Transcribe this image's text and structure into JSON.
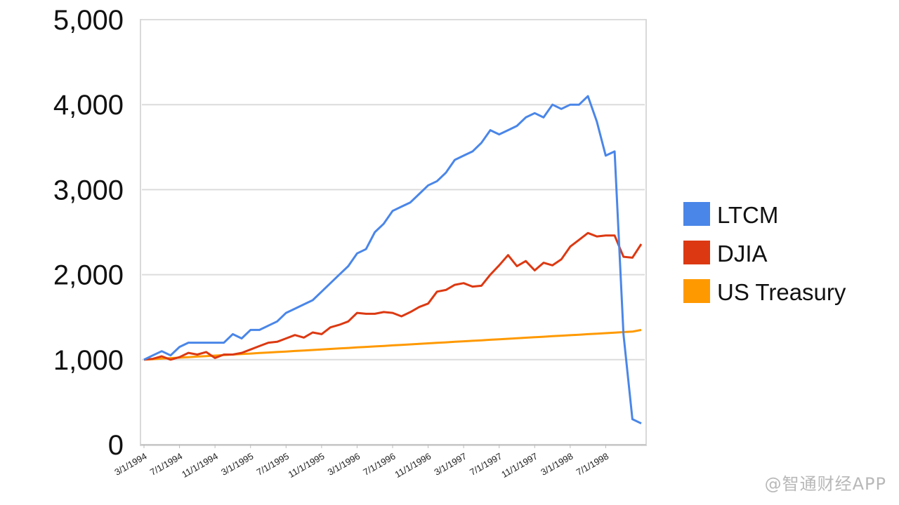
{
  "chart_data": {
    "type": "line",
    "title": "",
    "xlabel": "",
    "ylabel": "",
    "ylim": [
      0,
      5000
    ],
    "y_ticks": [
      "0",
      "1,000",
      "2,000",
      "3,000",
      "4,000",
      "5,000"
    ],
    "grid": true,
    "legend_position": "right",
    "x_tick_labels": [
      "3/1/1994",
      "7/1/1994",
      "11/1/1994",
      "3/1/1995",
      "7/1/1995",
      "11/1/1995",
      "3/1/1996",
      "7/1/1996",
      "11/1/1996",
      "3/1/1997",
      "7/1/1997",
      "11/1/1997",
      "3/1/1998",
      "7/1/1998"
    ],
    "x_start": "3/1/1994",
    "x_end": "11/1/1998",
    "series": [
      {
        "name": "LTCM",
        "color": "#4a86e8",
        "values": [
          1000,
          1050,
          1100,
          1050,
          1150,
          1200,
          1200,
          1200,
          1200,
          1200,
          1300,
          1250,
          1350,
          1350,
          1400,
          1450,
          1550,
          1600,
          1650,
          1700,
          1800,
          1900,
          2000,
          2100,
          2250,
          2300,
          2500,
          2600,
          2750,
          2800,
          2850,
          2950,
          3050,
          3100,
          3200,
          3350,
          3400,
          3450,
          3550,
          3700,
          3650,
          3700,
          3750,
          3850,
          3900,
          3850,
          4000,
          3950,
          4000,
          4000,
          4100,
          3800,
          3400,
          3450,
          1300,
          300,
          250
        ]
      },
      {
        "name": "DJIA",
        "color": "#dc3912",
        "values": [
          1000,
          1010,
          1040,
          1000,
          1030,
          1080,
          1060,
          1090,
          1020,
          1060,
          1060,
          1080,
          1120,
          1160,
          1200,
          1210,
          1250,
          1290,
          1260,
          1320,
          1300,
          1380,
          1410,
          1450,
          1550,
          1540,
          1540,
          1560,
          1550,
          1510,
          1560,
          1620,
          1660,
          1800,
          1820,
          1880,
          1900,
          1860,
          1870,
          2000,
          2110,
          2230,
          2100,
          2160,
          2050,
          2140,
          2110,
          2180,
          2330,
          2410,
          2490,
          2450,
          2460,
          2460,
          2210,
          2200,
          2360
        ]
      },
      {
        "name": "US Treasury",
        "color": "#ff9900",
        "values": [
          1000,
          1006,
          1012,
          1018,
          1024,
          1030,
          1036,
          1042,
          1048,
          1054,
          1060,
          1066,
          1072,
          1078,
          1084,
          1090,
          1096,
          1102,
          1108,
          1114,
          1120,
          1126,
          1132,
          1138,
          1144,
          1150,
          1156,
          1162,
          1168,
          1174,
          1180,
          1186,
          1192,
          1198,
          1204,
          1210,
          1216,
          1222,
          1228,
          1234,
          1240,
          1246,
          1252,
          1258,
          1264,
          1270,
          1276,
          1282,
          1288,
          1294,
          1300,
          1306,
          1312,
          1318,
          1324,
          1330,
          1350
        ]
      }
    ]
  },
  "watermark": "@智通财经APP"
}
